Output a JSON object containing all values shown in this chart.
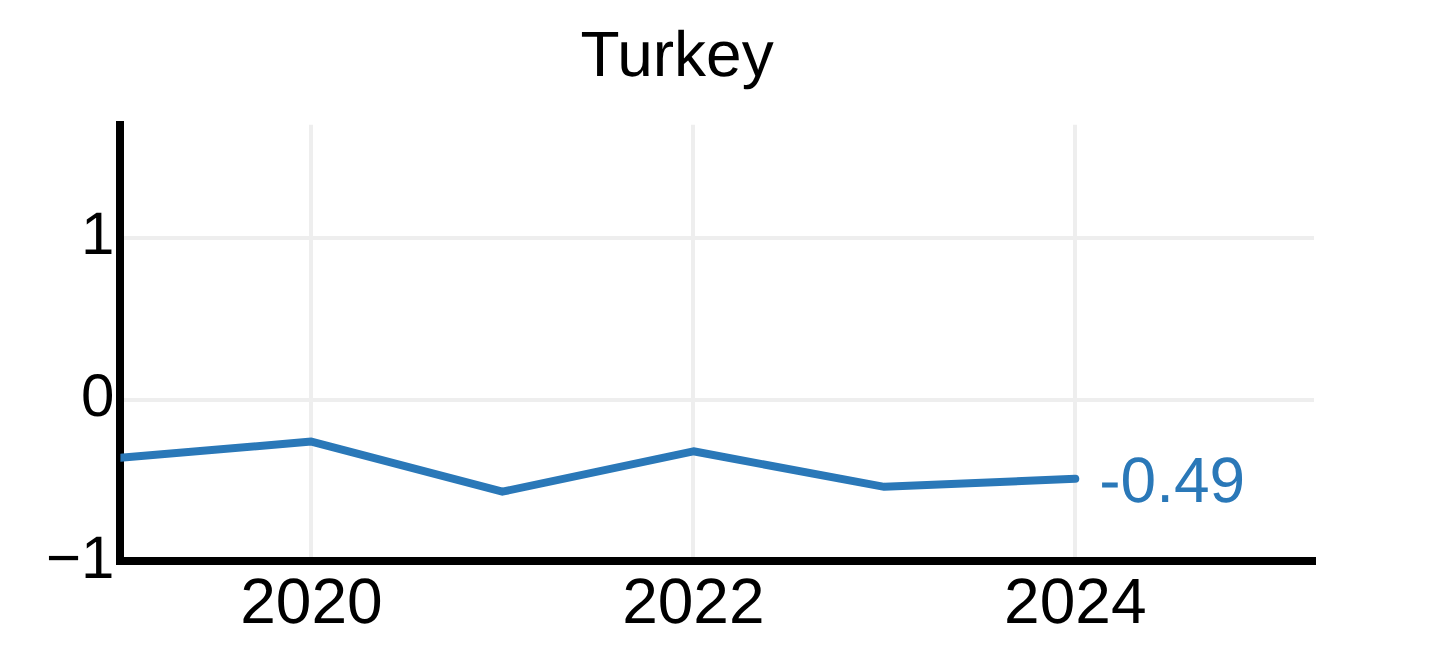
{
  "chart_data": {
    "type": "line",
    "title": "Turkey",
    "x": [
      2019,
      2020,
      2021,
      2022,
      2023,
      2024
    ],
    "series": [
      {
        "color": "#2a78b8",
        "values": [
          -0.36,
          -0.26,
          -0.57,
          -0.32,
          -0.54,
          -0.49
        ],
        "value_labels": [
          null,
          null,
          null,
          null,
          null,
          "-0.49"
        ]
      }
    ],
    "xlim": [
      2019,
      2025.25
    ],
    "xticks": [
      2020,
      2022,
      2024
    ],
    "ylim": [
      -1,
      1.7
    ],
    "yticks": [
      {
        "value": -1,
        "label": "−1"
      },
      0,
      1
    ],
    "grid": true,
    "legend": false,
    "marker": "none",
    "line_style": "solid"
  }
}
